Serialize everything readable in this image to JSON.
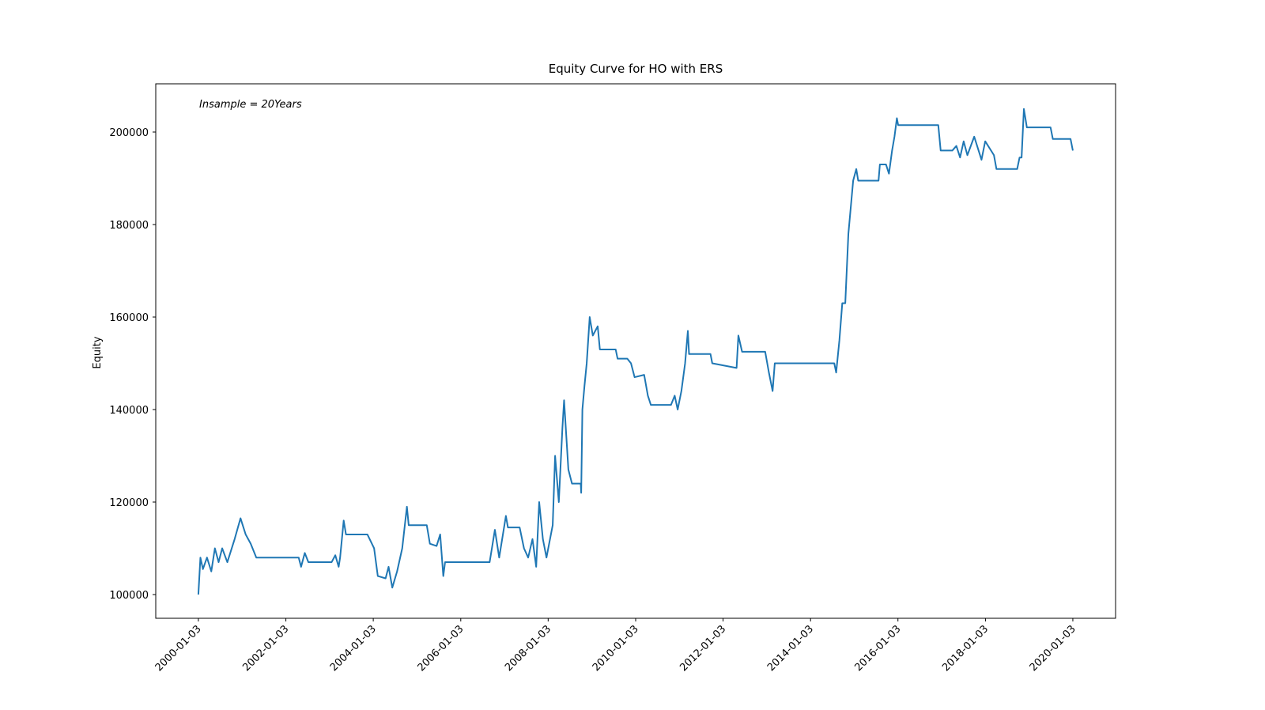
{
  "chart_data": {
    "type": "line",
    "title": "Equity Curve for HO with ERS",
    "ylabel": "Equity",
    "annotation": "Insample = 20Years",
    "color": "#1f77b4",
    "xlim": [
      "1999-01-12",
      "2020-12-25"
    ],
    "xticks": [
      "2000-01-03",
      "2002-01-03",
      "2004-01-03",
      "2006-01-03",
      "2008-01-03",
      "2010-01-03",
      "2012-01-03",
      "2014-01-03",
      "2016-01-03",
      "2018-01-03",
      "2020-01-03"
    ],
    "ylim": [
      94870,
      210430
    ],
    "yticks": [
      100000,
      120000,
      140000,
      160000,
      180000,
      200000
    ],
    "x": [
      "2000-01-03",
      "2000-01-20",
      "2000-02-10",
      "2000-03-15",
      "2000-04-20",
      "2000-05-20",
      "2000-06-20",
      "2000-07-20",
      "2000-09-01",
      "2000-11-01",
      "2000-12-20",
      "2001-02-01",
      "2001-03-15",
      "2001-05-01",
      "2002-04-20",
      "2002-05-10",
      "2002-06-10",
      "2002-07-10",
      "2003-01-20",
      "2003-02-20",
      "2003-03-20",
      "2003-04-01",
      "2003-05-01",
      "2003-05-20",
      "2003-11-15",
      "2004-01-10",
      "2004-02-10",
      "2004-04-15",
      "2004-05-10",
      "2004-06-10",
      "2004-07-20",
      "2004-09-01",
      "2004-10-10",
      "2004-10-25",
      "2005-03-25",
      "2005-04-20",
      "2005-06-15",
      "2005-07-15",
      "2005-08-10",
      "2005-08-25",
      "2006-09-01",
      "2006-09-20",
      "2006-10-15",
      "2006-11-20",
      "2007-01-15",
      "2007-02-01",
      "2007-05-10",
      "2007-06-15",
      "2007-07-20",
      "2007-08-25",
      "2007-09-25",
      "2007-10-20",
      "2007-11-20",
      "2007-12-20",
      "2008-02-10",
      "2008-03-01",
      "2008-04-01",
      "2008-05-01",
      "2008-05-15",
      "2008-06-20",
      "2008-07-20",
      "2008-10-01",
      "2008-10-05",
      "2008-10-15",
      "2008-11-01",
      "2008-11-20",
      "2008-12-15",
      "2009-01-10",
      "2009-02-20",
      "2009-03-10",
      "2009-07-20",
      "2009-08-05",
      "2009-10-25",
      "2009-11-25",
      "2009-12-25",
      "2010-03-15",
      "2010-04-15",
      "2010-05-10",
      "2010-10-25",
      "2010-11-25",
      "2010-12-20",
      "2011-01-20",
      "2011-02-20",
      "2011-03-15",
      "2011-03-25",
      "2011-09-20",
      "2011-10-05",
      "2012-04-25",
      "2012-05-10",
      "2012-06-10",
      "2012-12-20",
      "2013-01-20",
      "2013-02-20",
      "2013-03-10",
      "2014-07-20",
      "2014-08-05",
      "2014-09-01",
      "2014-09-25",
      "2014-10-20",
      "2014-11-15",
      "2014-12-25",
      "2015-01-20",
      "2015-02-05",
      "2015-07-25",
      "2015-08-05",
      "2015-09-25",
      "2015-10-20",
      "2015-11-15",
      "2015-12-05",
      "2015-12-25",
      "2016-01-05",
      "2016-12-05",
      "2016-12-25",
      "2017-04-01",
      "2017-05-05",
      "2017-06-05",
      "2017-07-05",
      "2017-08-05",
      "2017-10-01",
      "2017-12-01",
      "2018-01-01",
      "2018-03-15",
      "2018-04-05",
      "2018-09-25",
      "2018-10-15",
      "2018-11-01",
      "2018-11-20",
      "2018-12-15",
      "2019-07-01",
      "2019-07-20",
      "2019-12-15",
      "2020-01-03"
    ],
    "values": [
      100000,
      108000,
      105500,
      108000,
      105000,
      110000,
      107000,
      110000,
      107000,
      112000,
      116500,
      113000,
      111000,
      108000,
      108000,
      106000,
      109000,
      107000,
      107000,
      108500,
      106000,
      108000,
      116000,
      113000,
      113000,
      110000,
      104000,
      103500,
      106000,
      101500,
      105000,
      110000,
      119000,
      115000,
      115000,
      111000,
      110500,
      113000,
      104000,
      107000,
      107000,
      110000,
      114000,
      108000,
      117000,
      114500,
      114500,
      110000,
      108000,
      112000,
      106000,
      120000,
      112000,
      108000,
      115000,
      130000,
      120000,
      136000,
      142000,
      127000,
      124000,
      124000,
      122000,
      140000,
      145000,
      150000,
      160000,
      156000,
      158000,
      153000,
      153000,
      151000,
      151000,
      150000,
      147000,
      147500,
      143000,
      141000,
      141000,
      143000,
      140000,
      144000,
      150000,
      157000,
      152000,
      152000,
      150000,
      149000,
      156000,
      152500,
      152500,
      148000,
      144000,
      150000,
      150000,
      148000,
      155000,
      163000,
      163000,
      178000,
      189500,
      192000,
      189500,
      189500,
      193000,
      193000,
      191000,
      196000,
      199000,
      203000,
      201500,
      201500,
      196000,
      196000,
      197000,
      194500,
      198000,
      195000,
      199000,
      194000,
      198000,
      195000,
      192000,
      192000,
      194500,
      194500,
      205000,
      201000,
      201000,
      198500,
      198500,
      196000
    ]
  }
}
